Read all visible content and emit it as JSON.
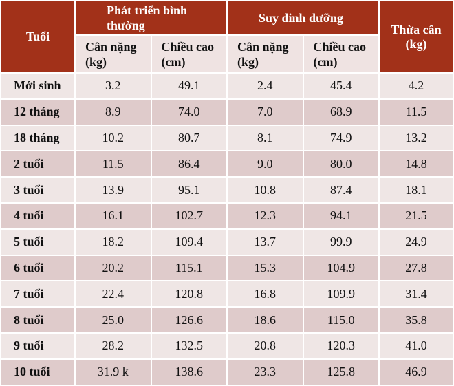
{
  "header": {
    "age": "Tuổi",
    "normal": {
      "title": "Phát triển bình thường",
      "weight": "Cân nặng (kg)",
      "height": "Chiều cao (cm)"
    },
    "malnutrition": {
      "title": "Suy dinh dưỡng",
      "weight": "Cân nặng (kg)",
      "height": "Chiều cao (cm)"
    },
    "overweight": "Thừa cân (kg)"
  },
  "table": {
    "rows": [
      [
        "Mới sinh",
        "3.2",
        "49.1",
        "2.4",
        "45.4",
        "4.2"
      ],
      [
        "12 tháng",
        "8.9",
        "74.0",
        "7.0",
        "68.9",
        "11.5"
      ],
      [
        "18 tháng",
        "10.2",
        "80.7",
        "8.1",
        "74.9",
        "13.2"
      ],
      [
        "2 tuổi",
        "11.5",
        "86.4",
        "9.0",
        "80.0",
        "14.8"
      ],
      [
        "3 tuổi",
        "13.9",
        "95.1",
        "10.8",
        "87.4",
        "18.1"
      ],
      [
        "4 tuổi",
        "16.1",
        "102.7",
        "12.3",
        "94.1",
        "21.5"
      ],
      [
        "5 tuổi",
        "18.2",
        "109.4",
        "13.7",
        "99.9",
        "24.9"
      ],
      [
        "6 tuổi",
        "20.2",
        "115.1",
        "15.3",
        "104.9",
        "27.8"
      ],
      [
        "7 tuổi",
        "22.4",
        "120.8",
        "16.8",
        "109.9",
        "31.4"
      ],
      [
        "8 tuổi",
        "25.0",
        "126.6",
        "18.6",
        "115.0",
        "35.8"
      ],
      [
        "9 tuổi",
        "28.2",
        "132.5",
        "20.8",
        "120.3",
        "41.0"
      ],
      [
        "10 tuổi",
        "31.9 k",
        "138.6",
        "23.3",
        "125.8",
        "46.9"
      ]
    ]
  }
}
